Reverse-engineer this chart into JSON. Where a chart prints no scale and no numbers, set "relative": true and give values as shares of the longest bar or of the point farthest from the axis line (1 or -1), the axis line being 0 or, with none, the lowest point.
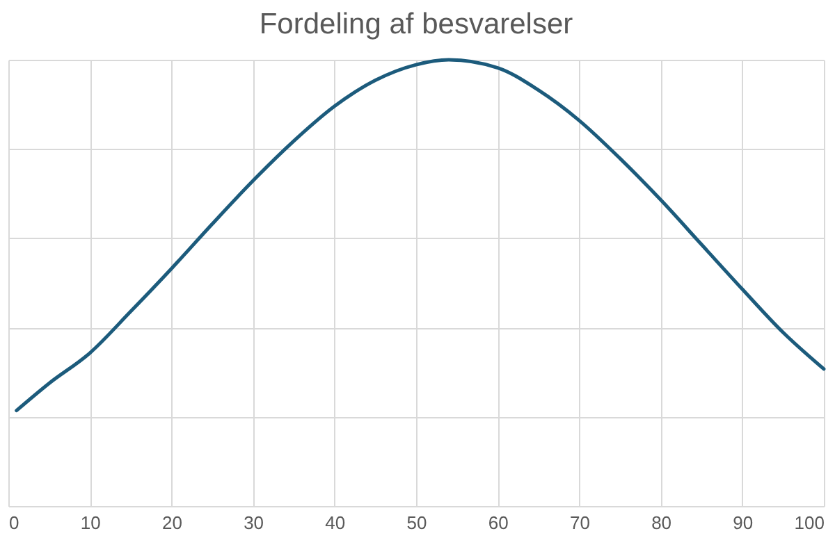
{
  "chart_data": {
    "type": "line",
    "title": "Fordeling af besvarelser",
    "relative": true,
    "grid": true,
    "xlim": [
      0,
      100
    ],
    "xticks": [
      0,
      10,
      20,
      30,
      40,
      50,
      60,
      70,
      80,
      90,
      100
    ],
    "series": [
      {
        "color": "#1c5b7c",
        "x": [
          1,
          5,
          10,
          15,
          20,
          25,
          30,
          35,
          40,
          45,
          50,
          54,
          60,
          65,
          70,
          75,
          80,
          85,
          90,
          95,
          100
        ],
        "values": [
          0.214,
          0.275,
          0.343,
          0.436,
          0.532,
          0.632,
          0.729,
          0.818,
          0.896,
          0.954,
          0.989,
          1,
          0.982,
          0.932,
          0.864,
          0.779,
          0.686,
          0.586,
          0.486,
          0.389,
          0.307
        ]
      }
    ]
  }
}
